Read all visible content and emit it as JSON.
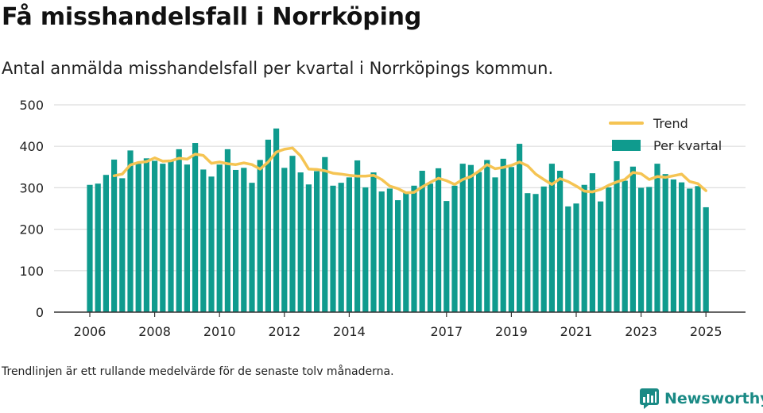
{
  "header": {
    "title": "Få misshandelsfall i Norrköping",
    "subtitle": "Antal anmälda misshandelsfall per kvartal i Norrköpings kommun."
  },
  "footnote": "Trendlinjen är ett rullande medelvärde för de senaste tolv månaderna.",
  "brand": {
    "name": "Newsworthy",
    "icon": "newsworthy-logo-icon",
    "color": "#1a8a85"
  },
  "colors": {
    "bars": "#0f9b8e",
    "trend": "#f5c453",
    "grid": "#dddddd",
    "axis": "#333333"
  },
  "chart_data": {
    "type": "bar",
    "title": "",
    "xlabel": "",
    "ylabel": "",
    "ylim": [
      0,
      500
    ],
    "yticks": [
      0,
      100,
      200,
      300,
      400,
      500
    ],
    "x_tick_labels": [
      "2006",
      "2008",
      "2010",
      "2012",
      "2014",
      "2017",
      "2019",
      "2021",
      "2023",
      "2025"
    ],
    "legend": {
      "placement": "top-right",
      "entries": [
        "Trend",
        "Per kvartal"
      ]
    },
    "grid": true,
    "categories": [
      "2006 Q1",
      "2006 Q2",
      "2006 Q3",
      "2006 Q4",
      "2007 Q1",
      "2007 Q2",
      "2007 Q3",
      "2007 Q4",
      "2008 Q1",
      "2008 Q2",
      "2008 Q3",
      "2008 Q4",
      "2009 Q1",
      "2009 Q2",
      "2009 Q3",
      "2009 Q4",
      "2010 Q1",
      "2010 Q2",
      "2010 Q3",
      "2010 Q4",
      "2011 Q1",
      "2011 Q2",
      "2011 Q3",
      "2011 Q4",
      "2012 Q1",
      "2012 Q2",
      "2012 Q3",
      "2012 Q4",
      "2013 Q1",
      "2013 Q2",
      "2013 Q3",
      "2013 Q4",
      "2014 Q1",
      "2014 Q2",
      "2014 Q3",
      "2014 Q4",
      "2015 Q1",
      "2015 Q2",
      "2015 Q3",
      "2015 Q4",
      "2016 Q1",
      "2016 Q2",
      "2016 Q3",
      "2016 Q4",
      "2017 Q1",
      "2017 Q2",
      "2017 Q3",
      "2017 Q4",
      "2018 Q1",
      "2018 Q2",
      "2018 Q3",
      "2018 Q4",
      "2019 Q1",
      "2019 Q2",
      "2019 Q3",
      "2019 Q4",
      "2020 Q1",
      "2020 Q2",
      "2020 Q3",
      "2020 Q4",
      "2021 Q1",
      "2021 Q2",
      "2021 Q3",
      "2021 Q4",
      "2022 Q1",
      "2022 Q2",
      "2022 Q3",
      "2022 Q4",
      "2023 Q1",
      "2023 Q2",
      "2023 Q3",
      "2023 Q4",
      "2024 Q1",
      "2024 Q2",
      "2024 Q3",
      "2024 Q4",
      "2025 Q1"
    ],
    "series": [
      {
        "name": "Per kvartal",
        "values": [
          307,
          310,
          331,
          368,
          323,
          390,
          358,
          371,
          365,
          358,
          367,
          393,
          356,
          408,
          344,
          327,
          356,
          393,
          343,
          348,
          312,
          367,
          416,
          443,
          348,
          377,
          337,
          308,
          340,
          374,
          305,
          312,
          325,
          366,
          301,
          337,
          291,
          298,
          270,
          290,
          305,
          341,
          310,
          347,
          268,
          305,
          358,
          355,
          338,
          367,
          325,
          370,
          350,
          406,
          287,
          285,
          303,
          358,
          341,
          255,
          262,
          307,
          335,
          267,
          301,
          364,
          317,
          351,
          300,
          302,
          358,
          333,
          320,
          313,
          298,
          304,
          253
        ]
      },
      {
        "name": "Trend",
        "values": [
          null,
          null,
          null,
          329,
          333,
          355,
          361,
          363,
          372,
          364,
          365,
          371,
          369,
          381,
          378,
          359,
          362,
          358,
          356,
          360,
          356,
          345,
          362,
          386,
          393,
          396,
          377,
          345,
          344,
          341,
          335,
          333,
          330,
          328,
          328,
          330,
          320,
          304,
          298,
          288,
          289,
          302,
          313,
          323,
          317,
          308,
          320,
          327,
          340,
          356,
          346,
          349,
          354,
          362,
          353,
          333,
          320,
          308,
          322,
          315,
          304,
          292,
          290,
          296,
          306,
          314,
          320,
          337,
          334,
          320,
          327,
          325,
          329,
          333,
          315,
          310,
          293
        ]
      }
    ]
  }
}
